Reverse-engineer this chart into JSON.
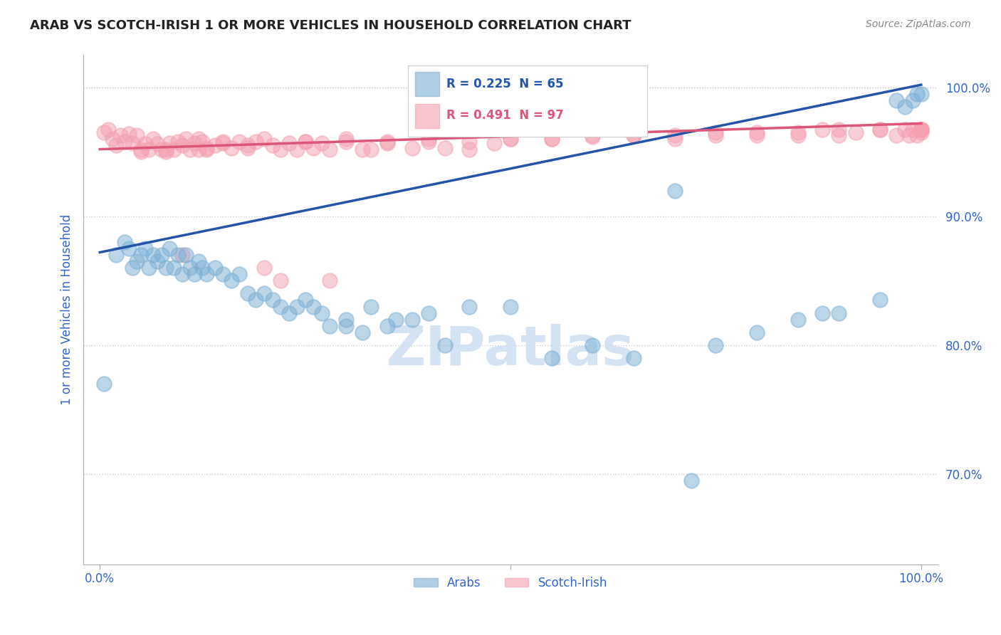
{
  "title": "ARAB VS SCOTCH-IRISH 1 OR MORE VEHICLES IN HOUSEHOLD CORRELATION CHART",
  "source": "Source: ZipAtlas.com",
  "ylabel": "1 or more Vehicles in Household",
  "xlim": [
    -0.02,
    1.02
  ],
  "ylim": [
    0.63,
    1.025
  ],
  "yticks": [
    0.7,
    0.8,
    0.9,
    1.0
  ],
  "ytick_labels": [
    "70.0%",
    "80.0%",
    "90.0%",
    "100.0%"
  ],
  "legend_arab_R": 0.225,
  "legend_arab_N": 65,
  "legend_scotch_R": 0.491,
  "legend_scotch_N": 97,
  "arab_color": "#7bafd4",
  "scotch_color": "#f4a0b0",
  "arab_line_color": "#2255aa",
  "scotch_line_color": "#dd5577",
  "watermark": "ZIPatlas",
  "title_color": "#222222",
  "axis_label_color": "#3366cc",
  "background_color": "#ffffff",
  "arab_x": [
    0.005,
    0.02,
    0.03,
    0.035,
    0.04,
    0.045,
    0.05,
    0.055,
    0.06,
    0.065,
    0.07,
    0.075,
    0.08,
    0.085,
    0.09,
    0.095,
    0.1,
    0.105,
    0.11,
    0.115,
    0.12,
    0.125,
    0.13,
    0.14,
    0.15,
    0.16,
    0.17,
    0.18,
    0.19,
    0.2,
    0.21,
    0.22,
    0.23,
    0.24,
    0.25,
    0.26,
    0.27,
    0.28,
    0.3,
    0.3,
    0.32,
    0.33,
    0.35,
    0.36,
    0.38,
    0.4,
    0.42,
    0.45,
    0.5,
    0.55,
    0.6,
    0.65,
    0.7,
    0.72,
    0.75,
    0.8,
    0.85,
    0.88,
    0.9,
    0.95,
    0.97,
    0.98,
    0.99,
    0.995,
    1.0
  ],
  "arab_y": [
    0.77,
    0.87,
    0.88,
    0.875,
    0.86,
    0.865,
    0.87,
    0.875,
    0.86,
    0.87,
    0.865,
    0.87,
    0.86,
    0.875,
    0.86,
    0.87,
    0.855,
    0.87,
    0.86,
    0.855,
    0.865,
    0.86,
    0.855,
    0.86,
    0.855,
    0.85,
    0.855,
    0.84,
    0.835,
    0.84,
    0.835,
    0.83,
    0.825,
    0.83,
    0.835,
    0.83,
    0.825,
    0.815,
    0.82,
    0.815,
    0.81,
    0.83,
    0.815,
    0.82,
    0.82,
    0.825,
    0.8,
    0.83,
    0.83,
    0.79,
    0.8,
    0.79,
    0.92,
    0.695,
    0.8,
    0.81,
    0.82,
    0.825,
    0.825,
    0.835,
    0.99,
    0.985,
    0.99,
    0.995,
    0.995
  ],
  "scotch_x": [
    0.005,
    0.01,
    0.015,
    0.02,
    0.025,
    0.03,
    0.035,
    0.04,
    0.045,
    0.05,
    0.055,
    0.06,
    0.065,
    0.07,
    0.075,
    0.08,
    0.085,
    0.09,
    0.095,
    0.1,
    0.105,
    0.11,
    0.115,
    0.12,
    0.125,
    0.13,
    0.14,
    0.15,
    0.16,
    0.17,
    0.18,
    0.19,
    0.2,
    0.21,
    0.22,
    0.23,
    0.24,
    0.25,
    0.26,
    0.27,
    0.28,
    0.3,
    0.32,
    0.35,
    0.38,
    0.4,
    0.42,
    0.45,
    0.48,
    0.5,
    0.55,
    0.6,
    0.65,
    0.7,
    0.75,
    0.8,
    0.85,
    0.88,
    0.9,
    0.92,
    0.95,
    0.97,
    0.98,
    0.985,
    0.99,
    0.995,
    0.998,
    1.0,
    1.0,
    1.0,
    0.1,
    0.12,
    0.15,
    0.18,
    0.2,
    0.25,
    0.3,
    0.35,
    0.4,
    0.45,
    0.5,
    0.55,
    0.6,
    0.65,
    0.7,
    0.75,
    0.8,
    0.85,
    0.9,
    0.95,
    1.0,
    0.05,
    0.08,
    0.13,
    0.22,
    0.28,
    0.33
  ],
  "scotch_y": [
    0.965,
    0.967,
    0.96,
    0.955,
    0.963,
    0.958,
    0.964,
    0.957,
    0.963,
    0.95,
    0.956,
    0.952,
    0.96,
    0.956,
    0.952,
    0.95,
    0.957,
    0.952,
    0.958,
    0.87,
    0.96,
    0.952,
    0.957,
    0.952,
    0.958,
    0.953,
    0.955,
    0.957,
    0.953,
    0.958,
    0.953,
    0.958,
    0.86,
    0.955,
    0.85,
    0.957,
    0.952,
    0.958,
    0.953,
    0.957,
    0.85,
    0.958,
    0.952,
    0.957,
    0.953,
    0.958,
    0.953,
    0.952,
    0.957,
    0.96,
    0.96,
    0.962,
    0.963,
    0.96,
    0.963,
    0.963,
    0.963,
    0.967,
    0.963,
    0.965,
    0.967,
    0.963,
    0.967,
    0.963,
    0.967,
    0.963,
    0.967,
    0.967,
    0.965,
    0.967,
    0.955,
    0.96,
    0.958,
    0.955,
    0.96,
    0.958,
    0.96,
    0.958,
    0.96,
    0.958,
    0.96,
    0.96,
    0.963,
    0.963,
    0.963,
    0.965,
    0.965,
    0.965,
    0.967,
    0.967,
    0.967,
    0.952,
    0.952,
    0.952,
    0.952,
    0.952,
    0.952
  ]
}
